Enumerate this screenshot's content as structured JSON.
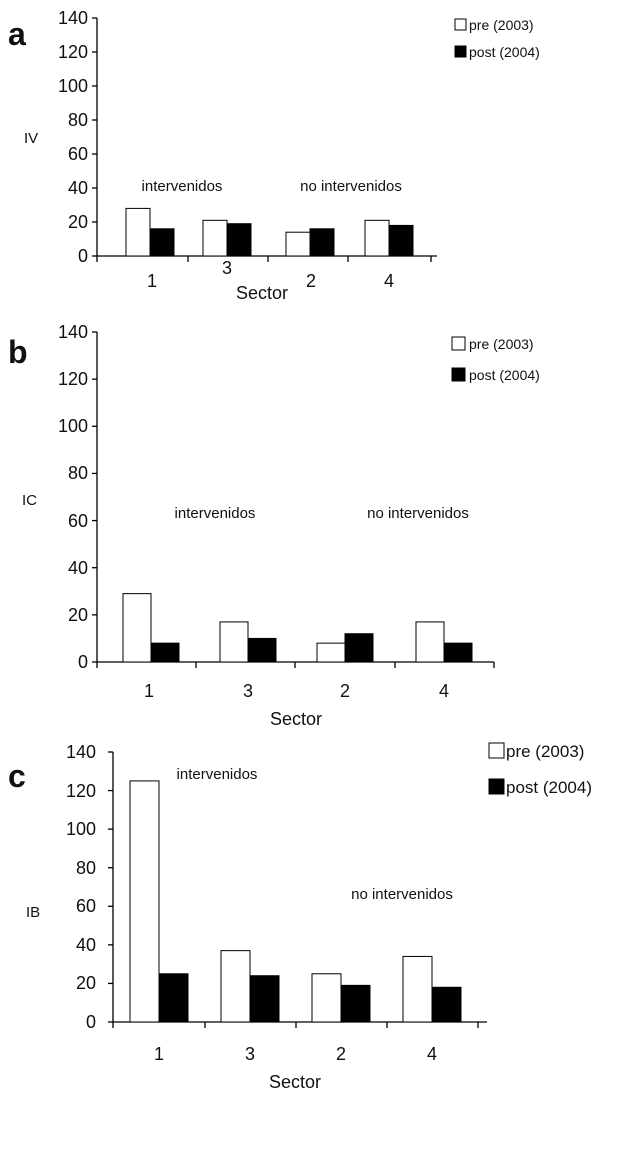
{
  "colors": {
    "pre": "#ffffff",
    "post": "#000000",
    "outline": "#000000"
  },
  "chart_data": [
    {
      "type": "bar",
      "panel_label": "a",
      "ylabel": "IV",
      "xlabel": "Sector",
      "categories": [
        "1",
        "3",
        "2",
        "4"
      ],
      "ylim": [
        0,
        140
      ],
      "yticks": [
        "0",
        "20",
        "40",
        "60",
        "80",
        "100",
        "120",
        "140"
      ],
      "series": [
        {
          "name": "pre (2003)",
          "values": [
            28,
            21,
            14,
            21
          ]
        },
        {
          "name": "post (2004)",
          "values": [
            16,
            19,
            16,
            18
          ]
        }
      ],
      "annotations": [
        "intervenidos",
        "no intervenidos"
      ],
      "grid": false,
      "legend": "top-right"
    },
    {
      "type": "bar",
      "panel_label": "b",
      "ylabel": "IC",
      "xlabel": "Sector",
      "categories": [
        "1",
        "3",
        "2",
        "4"
      ],
      "ylim": [
        0,
        140
      ],
      "yticks": [
        "0",
        "20",
        "40",
        "60",
        "80",
        "100",
        "120",
        "140"
      ],
      "series": [
        {
          "name": "pre (2003)",
          "values": [
            29,
            17,
            8,
            17
          ]
        },
        {
          "name": "post (2004)",
          "values": [
            8,
            10,
            12,
            8
          ]
        }
      ],
      "annotations": [
        "intervenidos",
        "no intervenidos"
      ],
      "grid": false,
      "legend": "top-right"
    },
    {
      "type": "bar",
      "panel_label": "c",
      "ylabel": "IB",
      "xlabel": "Sector",
      "categories": [
        "1",
        "3",
        "2",
        "4"
      ],
      "ylim": [
        0,
        140
      ],
      "yticks": [
        "0",
        "20",
        "40",
        "60",
        "80",
        "100",
        "120",
        "140"
      ],
      "series": [
        {
          "name": "pre (2003)",
          "values": [
            125,
            37,
            25,
            34
          ]
        },
        {
          "name": "post (2004)",
          "values": [
            25,
            24,
            19,
            18
          ]
        }
      ],
      "annotations": [
        "intervenidos",
        "no intervenidos"
      ],
      "grid": false,
      "legend": "top-right"
    }
  ]
}
